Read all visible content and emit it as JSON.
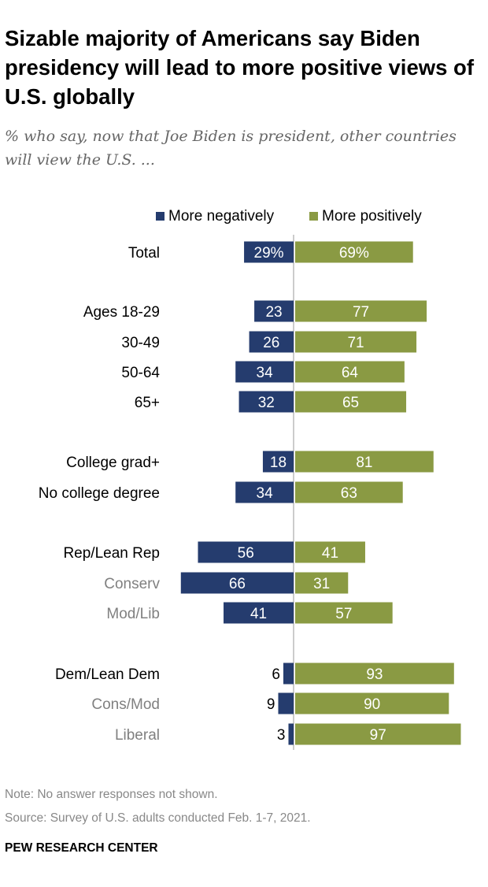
{
  "header": {
    "title": "Sizable majority of Americans say Biden presidency will lead to more positive views of U.S. globally",
    "subtitle": "% who say, now that Joe Biden is president, other countries will view the U.S. ..."
  },
  "colors": {
    "negative": "#253c6e",
    "positive": "#8a9a43",
    "axis": "#bbbbbb",
    "muted_label": "#808080"
  },
  "chart_data": {
    "type": "bar",
    "orientation": "horizontal-diverging",
    "legend": "top",
    "categories": [
      "Total",
      "Ages 18-29",
      "30-49",
      "50-64",
      "65+",
      "College grad+",
      "No college degree",
      "Rep/Lean Rep",
      "Conserv",
      "Mod/Lib",
      "Dem/Lean Dem",
      "Cons/Mod",
      "Liberal"
    ],
    "category_style": [
      "primary",
      "primary",
      "primary",
      "primary",
      "primary",
      "primary",
      "primary",
      "primary",
      "sub",
      "sub",
      "primary",
      "sub",
      "sub"
    ],
    "value_labels": {
      "More negatively": [
        "29%",
        "23",
        "26",
        "34",
        "32",
        "18",
        "34",
        "56",
        "66",
        "41",
        "6",
        "9",
        "3"
      ],
      "More positively": [
        "69%",
        "77",
        "71",
        "64",
        "65",
        "81",
        "63",
        "41",
        "31",
        "57",
        "93",
        "90",
        "97"
      ]
    },
    "series": [
      {
        "name": "More negatively",
        "values": [
          29,
          23,
          26,
          34,
          32,
          18,
          34,
          56,
          66,
          41,
          6,
          9,
          3
        ]
      },
      {
        "name": "More positively",
        "values": [
          69,
          77,
          71,
          64,
          65,
          81,
          63,
          41,
          31,
          57,
          93,
          90,
          97
        ]
      }
    ]
  },
  "footer": {
    "note": "Note: No answer responses not shown.",
    "source": "Source: Survey of U.S. adults conducted Feb. 1-7, 2021.",
    "brand": "PEW RESEARCH CENTER"
  }
}
